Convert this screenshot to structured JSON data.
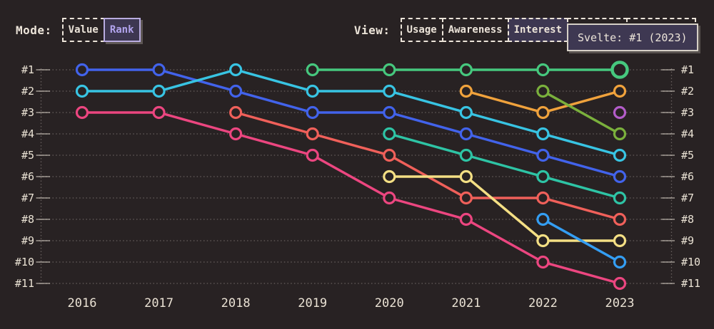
{
  "page": {
    "background": "#282223",
    "text_color": "#ece4d9",
    "accent_purple": "#b2a4ee"
  },
  "header": {
    "mode": {
      "label": "Mode:",
      "options": [
        {
          "label": "Value",
          "selected": false
        },
        {
          "label": "Rank",
          "selected": true
        }
      ]
    },
    "view": {
      "label": "View:",
      "options": [
        {
          "label": "Usage",
          "selected": false
        },
        {
          "label": "Awareness",
          "selected": false
        },
        {
          "label": "Interest",
          "selected": true
        },
        {
          "label": "",
          "selected": false
        },
        {
          "label": "ty",
          "selected": false
        }
      ]
    },
    "tooltip": {
      "text": "Svelte: #1 (2023)"
    }
  },
  "chart_data": {
    "type": "line",
    "subtype": "bump-rank-chart",
    "title": "",
    "x": [
      2016,
      2017,
      2018,
      2019,
      2020,
      2021,
      2022,
      2023
    ],
    "x_labels": [
      "2016",
      "2017",
      "2018",
      "2019",
      "2020",
      "2021",
      "2022",
      "2023"
    ],
    "rank_labels": [
      "#1",
      "#2",
      "#3",
      "#4",
      "#5",
      "#6",
      "#7",
      "#8",
      "#9",
      "#10",
      "#11"
    ],
    "y_axis": {
      "min_rank": 1,
      "max_rank": 11,
      "inverted": true,
      "labels_on_both_sides": true
    },
    "grid": "dotted-horizontal",
    "legend": "none",
    "series": [
      {
        "id": "royal-blue",
        "color": "#4263eb",
        "points": [
          [
            2016,
            1
          ],
          [
            2017,
            1
          ],
          [
            2018,
            2
          ],
          [
            2019,
            3
          ],
          [
            2020,
            3
          ],
          [
            2021,
            4
          ],
          [
            2022,
            5
          ],
          [
            2023,
            6
          ]
        ]
      },
      {
        "id": "cyan",
        "color": "#38c4e3",
        "points": [
          [
            2016,
            2
          ],
          [
            2017,
            2
          ],
          [
            2018,
            1
          ],
          [
            2019,
            2
          ],
          [
            2020,
            2
          ],
          [
            2021,
            3
          ],
          [
            2022,
            4
          ],
          [
            2023,
            5
          ]
        ]
      },
      {
        "id": "pink",
        "color": "#ec4680",
        "points": [
          [
            2016,
            3
          ],
          [
            2017,
            3
          ],
          [
            2018,
            4
          ],
          [
            2019,
            5
          ],
          [
            2020,
            7
          ],
          [
            2021,
            8
          ],
          [
            2022,
            10
          ],
          [
            2023,
            11
          ]
        ]
      },
      {
        "id": "red-salmon",
        "color": "#f0605a",
        "points": [
          [
            2018,
            3
          ],
          [
            2019,
            4
          ],
          [
            2020,
            5
          ],
          [
            2021,
            7
          ],
          [
            2022,
            7
          ],
          [
            2023,
            8
          ]
        ]
      },
      {
        "id": "teal",
        "color": "#2ec4a5",
        "points": [
          [
            2020,
            4
          ],
          [
            2021,
            5
          ],
          [
            2022,
            6
          ],
          [
            2023,
            7
          ]
        ]
      },
      {
        "id": "yellow",
        "color": "#f4df84",
        "points": [
          [
            2020,
            6
          ],
          [
            2021,
            6
          ],
          [
            2022,
            9
          ],
          [
            2023,
            9
          ]
        ]
      },
      {
        "id": "sky-blue",
        "color": "#349ef3",
        "points": [
          [
            2022,
            8
          ],
          [
            2023,
            10
          ]
        ]
      },
      {
        "id": "orange",
        "color": "#f0a23c",
        "points": [
          [
            2021,
            2
          ],
          [
            2022,
            3
          ],
          [
            2023,
            2
          ]
        ]
      },
      {
        "id": "olive-green",
        "color": "#7ab03c",
        "points": [
          [
            2022,
            2
          ],
          [
            2023,
            4
          ]
        ]
      },
      {
        "id": "purple",
        "color": "#b35cc9",
        "points": [
          [
            2023,
            3
          ]
        ]
      },
      {
        "id": "spring-green",
        "color": "#46c87e",
        "points": [
          [
            2019,
            1
          ],
          [
            2020,
            1
          ],
          [
            2021,
            1
          ],
          [
            2022,
            1
          ],
          [
            2023,
            1
          ]
        ]
      }
    ],
    "highlight": {
      "series": "spring-green",
      "year": 2023,
      "rank": 1,
      "tooltip_text": "Svelte: #1 (2023)"
    }
  }
}
